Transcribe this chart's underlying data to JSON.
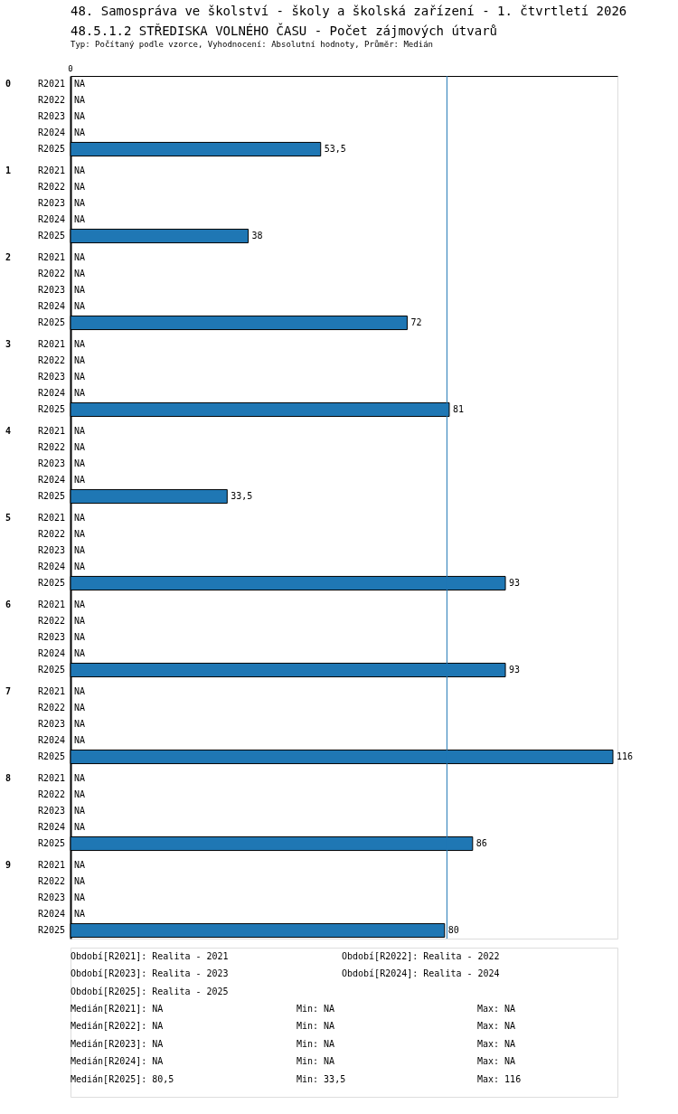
{
  "chart_data": {
    "type": "bar",
    "orientation": "horizontal",
    "title": "48. Samospráva ve školství - školy a školská zařízení - 1. čtvrtletí 2026",
    "subtitle": "48.5.1.2 STŘEDISKA VOLNÉHO ČASU - Počet zájmových útvarů",
    "categories": [
      "R2021",
      "R2022",
      "R2023",
      "R2024",
      "R2025",
      "R2021",
      "R2022",
      "R2023",
      "R2024",
      "R2025",
      "R2021",
      "R2022",
      "R2023",
      "R2024",
      "R2025",
      "R2021",
      "R2022",
      "R2023",
      "R2024",
      "R2025",
      "R2021",
      "R2022",
      "R2023",
      "R2024",
      "R2025",
      "R2021",
      "R2022",
      "R2023",
      "R2024",
      "R2025",
      "R2021",
      "R2022",
      "R2023",
      "R2024",
      "R2025",
      "R2021",
      "R2022",
      "R2023",
      "R2024",
      "R2025",
      "R2021",
      "R2022",
      "R2023",
      "R2024",
      "R2025",
      "R2021",
      "R2022",
      "R2023",
      "R2024",
      "R2025"
    ],
    "series": [
      {
        "color": "#1f77b4",
        "values": [
          null,
          null,
          null,
          null,
          53.5,
          null,
          null,
          null,
          null,
          38,
          null,
          null,
          null,
          null,
          72,
          null,
          null,
          null,
          null,
          81,
          null,
          null,
          null,
          null,
          33.5,
          null,
          null,
          null,
          null,
          93,
          null,
          null,
          null,
          null,
          93,
          null,
          null,
          null,
          null,
          116,
          null,
          null,
          null,
          null,
          86,
          null,
          null,
          null,
          null,
          80
        ],
        "value_labels": [
          "NA",
          "NA",
          "NA",
          "NA",
          "53,5",
          "NA",
          "NA",
          "NA",
          "NA",
          "38",
          "NA",
          "NA",
          "NA",
          "NA",
          "72",
          "NA",
          "NA",
          "NA",
          "NA",
          "81",
          "NA",
          "NA",
          "NA",
          "NA",
          "33,5",
          "NA",
          "NA",
          "NA",
          "NA",
          "93",
          "NA",
          "NA",
          "NA",
          "NA",
          "93",
          "NA",
          "NA",
          "NA",
          "NA",
          "116",
          "NA",
          "NA",
          "NA",
          "NA",
          "86",
          "NA",
          "NA",
          "NA",
          "NA",
          "80"
        ]
      }
    ],
    "ref_lines": [
      {
        "axis": "x",
        "value": 80.5,
        "color": "#1f77b4"
      }
    ],
    "annotations": [
      "Typ: Počítaný podle vzorce, Vyhodnocení: Absolutní hodnoty, Průměr: Medián",
      "0",
      "0",
      "1",
      "2",
      "3",
      "4",
      "5",
      "6",
      "7",
      "8",
      "9",
      "Období[R2021]: Realita - 2021",
      "Období[R2022]: Realita - 2022",
      "Období[R2023]: Realita - 2023",
      "Období[R2024]: Realita - 2024",
      "Období[R2025]: Realita - 2025",
      "Medián[R2021]: NA",
      "Min: NA",
      "Max: NA",
      "Medián[R2022]: NA",
      "Min: NA",
      "Max: NA",
      "Medián[R2023]: NA",
      "Min: NA",
      "Max: NA",
      "Medián[R2024]: NA",
      "Min: NA",
      "Max: NA",
      "Medián[R2025]: 80,5",
      "Min: 33,5",
      "Max: 116"
    ]
  }
}
